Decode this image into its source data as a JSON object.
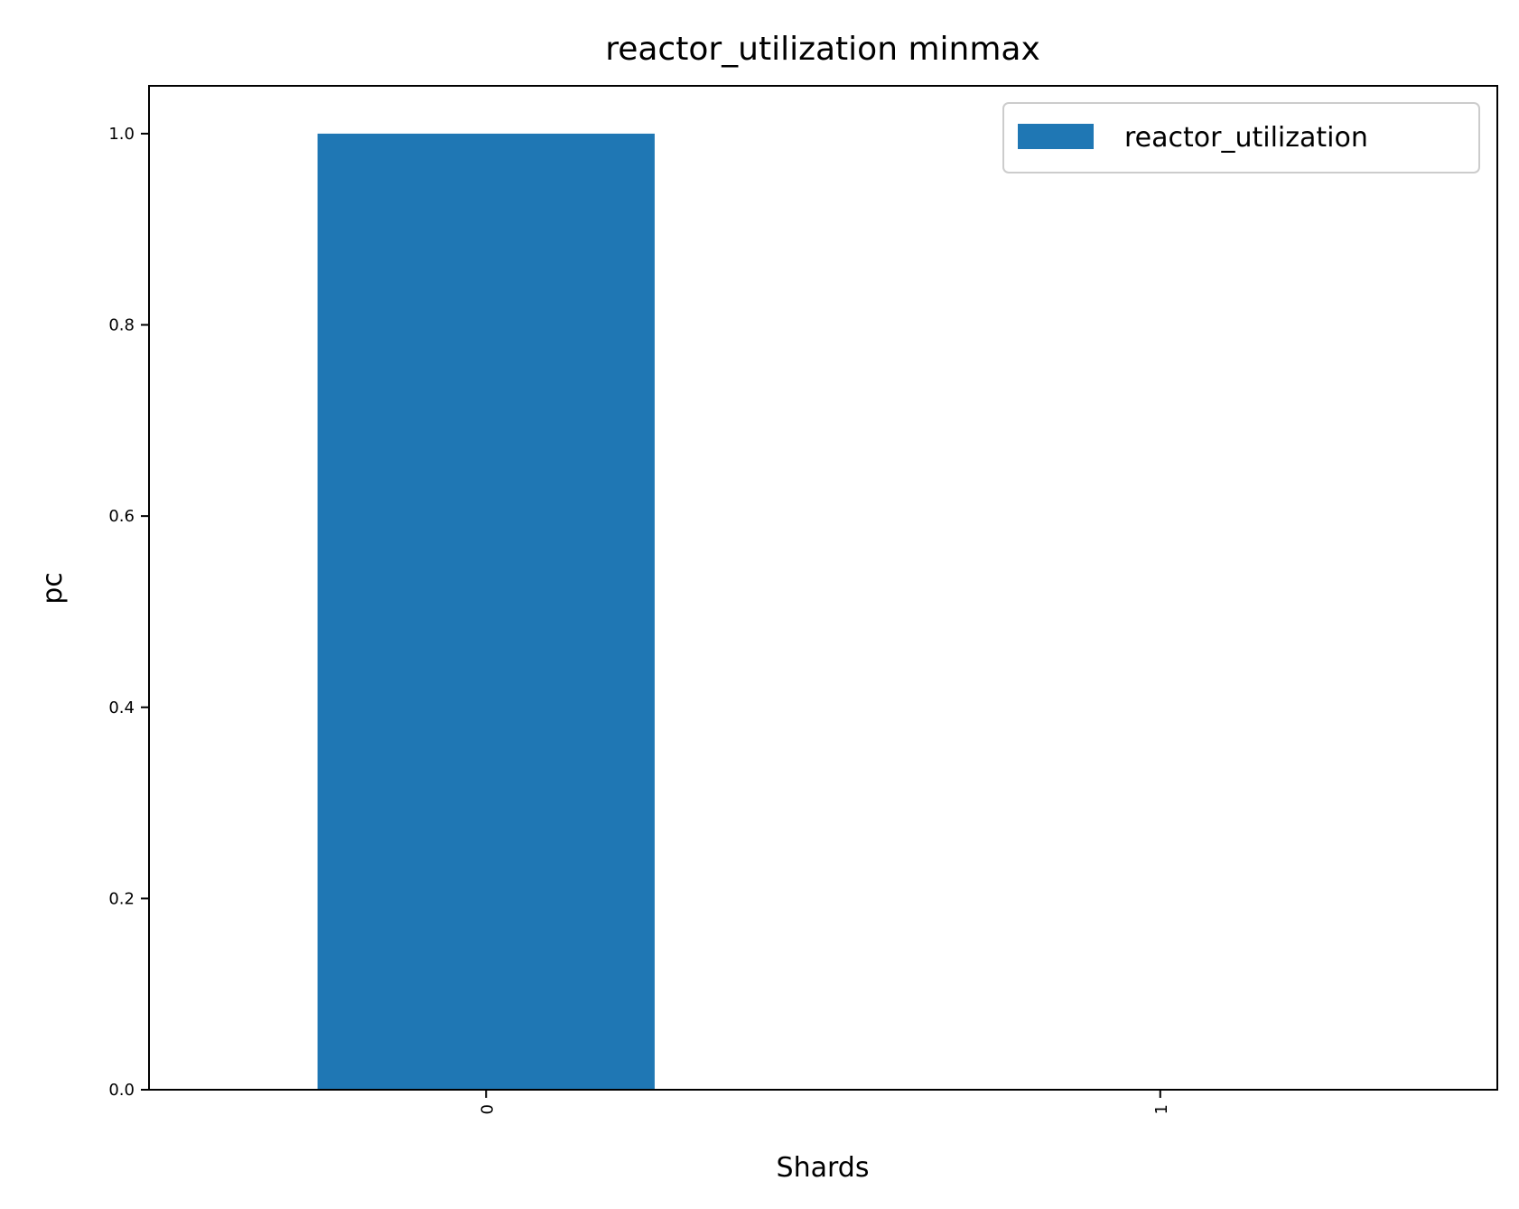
{
  "chart_data": {
    "type": "bar",
    "title": "reactor_utilization minmax",
    "xlabel": "Shards",
    "ylabel": "pc",
    "categories": [
      "0",
      "1"
    ],
    "series": [
      {
        "name": "reactor_utilization",
        "values": [
          1.0,
          0.0
        ],
        "color": "#1f77b4"
      }
    ],
    "ylim": [
      0,
      1.05
    ],
    "yticks": [
      0.0,
      0.2,
      0.4,
      0.6,
      0.8,
      1.0
    ],
    "ytick_labels": [
      "0.0",
      "0.2",
      "0.4",
      "0.6",
      "0.8",
      "1.0"
    ],
    "xtick_rotation": "vertical",
    "grid": false,
    "legend_position": "top-right"
  }
}
